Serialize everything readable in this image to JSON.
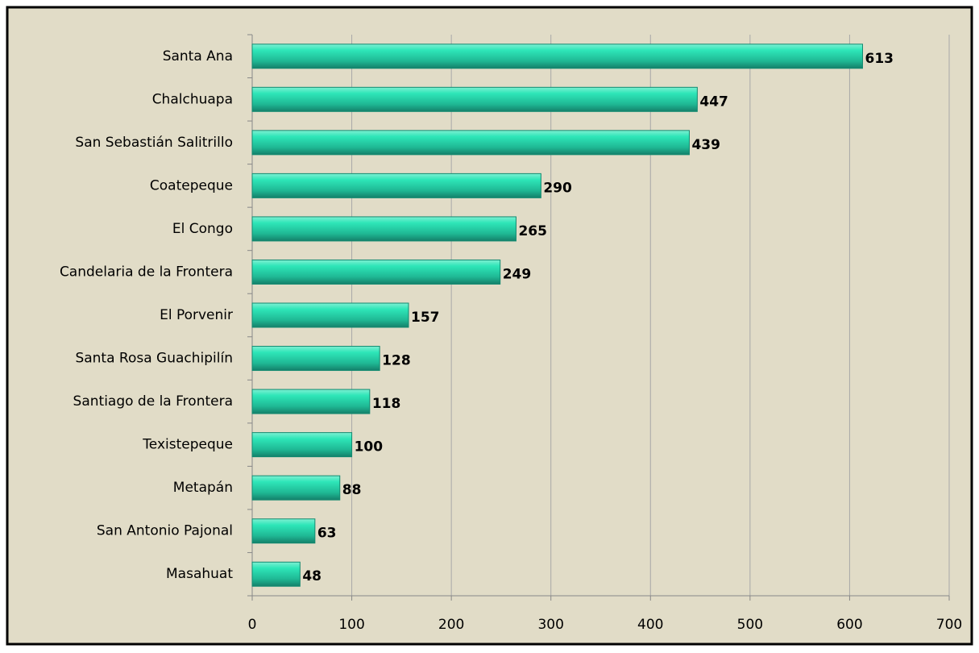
{
  "chart_data": {
    "type": "bar",
    "orientation": "horizontal",
    "categories": [
      "Santa Ana",
      "Chalchuapa",
      "San Sebastián Salitrillo",
      "Coatepeque",
      "El Congo",
      "Candelaria de la Frontera",
      "El Porvenir",
      "Santa Rosa Guachipilín",
      "Santiago de la Frontera",
      "Texistepeque",
      "Metapán",
      "San Antonio Pajonal",
      "Masahuat"
    ],
    "values": [
      613,
      447,
      439,
      290,
      265,
      249,
      157,
      128,
      118,
      100,
      88,
      63,
      48
    ],
    "color": "#25d0a8",
    "xlim": [
      0,
      700
    ],
    "xticks": [
      0,
      100,
      200,
      300,
      400,
      500,
      600,
      700
    ],
    "grid": true
  }
}
